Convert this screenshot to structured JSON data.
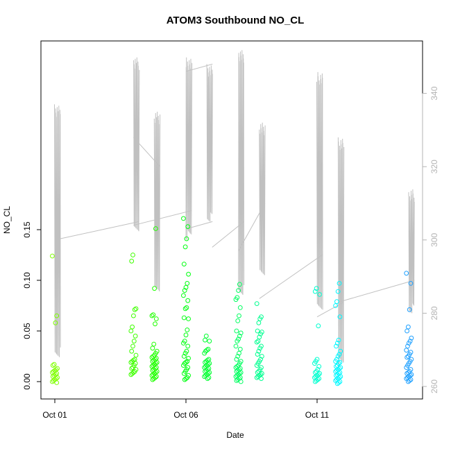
{
  "chart_data": {
    "type": "scatter",
    "title": "ATOM3 Southbound NO_CL",
    "xlabel": "Date",
    "ylabel": "NO_CL",
    "x_ticks": [
      "Oct 01",
      "Oct 06",
      "Oct 11"
    ],
    "xlim": [
      "2016-10-01",
      "2016-10-15"
    ],
    "ylim": [
      -0.007,
      0.161
    ],
    "y_ticks": [
      "0.00",
      "0.05",
      "0.10",
      "0.15"
    ],
    "y2lim": [
      259,
      349
    ],
    "y2_ticks": [
      "260",
      "280",
      "300",
      "320",
      "340"
    ],
    "grid": false,
    "marker": "open-circle",
    "color_scale": [
      "#7fff00",
      "#00ff00",
      "#00ff7f",
      "#00ffff",
      "#1e90ff"
    ],
    "secondary_series": {
      "color": "#c0c0c0",
      "type": "line",
      "segments": [
        {
          "x": "2016-10-01",
          "ymin": 268,
          "ymax": 337
        },
        {
          "x": "2016-10-04",
          "ymin": 302,
          "ymax": 350
        },
        {
          "x": "2016-10-04.8",
          "ymin": 285,
          "ymax": 335
        },
        {
          "x": "2016-10-06",
          "ymin": 300,
          "ymax": 350
        },
        {
          "x": "2016-10-06.8",
          "ymin": 305,
          "ymax": 348
        },
        {
          "x": "2016-10-08",
          "ymin": 285,
          "ymax": 352
        },
        {
          "x": "2016-10-08.8",
          "ymin": 290,
          "ymax": 332
        },
        {
          "x": "2016-10-11",
          "ymin": 280,
          "ymax": 346
        },
        {
          "x": "2016-10-11.8",
          "ymin": 265,
          "ymax": 328
        },
        {
          "x": "2016-10-14.5",
          "ymin": 280,
          "ymax": 314
        }
      ],
      "connectors": [
        {
          "x": [
            "2016-10-01",
            "2016-10-04"
          ],
          "y": [
            300,
            305
          ]
        },
        {
          "x": [
            "2016-10-04",
            "2016-10-04.8"
          ],
          "y": [
            328,
            320
          ]
        },
        {
          "x": [
            "2016-10-04",
            "2016-10-06"
          ],
          "y": [
            304,
            308
          ]
        },
        {
          "x": [
            "2016-10-06",
            "2016-10-06.8"
          ],
          "y": [
            346,
            348
          ]
        },
        {
          "x": [
            "2016-10-06",
            "2016-10-06.8"
          ],
          "y": [
            303,
            305
          ]
        },
        {
          "x": [
            "2016-10-07",
            "2016-10-08"
          ],
          "y": [
            298,
            305
          ]
        },
        {
          "x": [
            "2016-10-08",
            "2016-10-08.8"
          ],
          "y": [
            297,
            310
          ]
        },
        {
          "x": [
            "2016-10-08.8",
            "2016-10-11"
          ],
          "y": [
            284,
            296
          ]
        },
        {
          "x": [
            "2016-10-11",
            "2016-10-11.8"
          ],
          "y": [
            279,
            283
          ]
        },
        {
          "x": [
            "2016-10-11.8",
            "2016-10-14.5"
          ],
          "y": [
            283,
            289
          ]
        }
      ]
    },
    "clusters": [
      {
        "x": "2016-10-01",
        "color": "#7fff00",
        "points": [
          0.124,
          0.065,
          0.058,
          0.017,
          0.016,
          0.013,
          0.012,
          0.011,
          0.01,
          0.009,
          0.008,
          0.007,
          0.006,
          0.005,
          0.004,
          0.003,
          0.002,
          0.001,
          0.0,
          -0.001
        ]
      },
      {
        "x": "2016-10-04",
        "color": "#3fff00",
        "points": [
          0.125,
          0.119,
          0.072,
          0.071,
          0.065,
          0.054,
          0.05,
          0.045,
          0.04,
          0.035,
          0.03,
          0.026,
          0.022,
          0.021,
          0.02,
          0.019,
          0.018,
          0.016,
          0.014,
          0.013,
          0.012,
          0.01,
          0.009,
          0.008,
          0.007
        ]
      },
      {
        "x": "2016-10-04.8",
        "color": "#20ff00",
        "points": [
          0.151,
          0.092,
          0.066,
          0.065,
          0.062,
          0.057,
          0.037,
          0.033,
          0.03,
          0.028,
          0.026,
          0.025,
          0.024,
          0.023,
          0.022,
          0.021,
          0.02,
          0.019,
          0.018,
          0.017,
          0.016,
          0.015,
          0.014,
          0.013,
          0.012,
          0.011,
          0.01,
          0.009,
          0.008,
          0.007,
          0.006,
          0.005,
          0.004,
          0.003,
          0.002
        ]
      },
      {
        "x": "2016-10-06",
        "color": "#00ff10",
        "points": [
          0.161,
          0.153,
          0.141,
          0.133,
          0.116,
          0.106,
          0.097,
          0.093,
          0.09,
          0.085,
          0.08,
          0.073,
          0.072,
          0.063,
          0.062,
          0.051,
          0.046,
          0.04,
          0.038,
          0.035,
          0.03,
          0.028,
          0.025,
          0.023,
          0.02,
          0.019,
          0.018,
          0.016,
          0.014,
          0.012,
          0.01,
          0.008,
          0.006,
          0.004,
          0.003,
          0.002
        ]
      },
      {
        "x": "2016-10-06.8",
        "color": "#00ff30",
        "points": [
          0.045,
          0.041,
          0.04,
          0.032,
          0.031,
          0.03,
          0.028,
          0.022,
          0.021,
          0.02,
          0.019,
          0.018,
          0.017,
          0.016,
          0.015,
          0.014,
          0.013,
          0.012,
          0.011,
          0.01,
          0.009,
          0.008,
          0.007,
          0.006,
          0.005,
          0.004,
          0.003
        ]
      },
      {
        "x": "2016-10-08",
        "color": "#00ff60",
        "points": [
          0.096,
          0.09,
          0.083,
          0.081,
          0.073,
          0.065,
          0.06,
          0.05,
          0.048,
          0.045,
          0.042,
          0.04,
          0.035,
          0.032,
          0.028,
          0.025,
          0.022,
          0.02,
          0.018,
          0.016,
          0.015,
          0.014,
          0.013,
          0.012,
          0.011,
          0.01,
          0.009,
          0.008,
          0.007,
          0.006,
          0.005,
          0.004,
          0.003,
          0.002,
          0.001,
          0.0
        ]
      },
      {
        "x": "2016-10-08.8",
        "color": "#00ff90",
        "points": [
          0.077,
          0.064,
          0.062,
          0.058,
          0.05,
          0.049,
          0.047,
          0.044,
          0.04,
          0.039,
          0.035,
          0.033,
          0.03,
          0.027,
          0.025,
          0.022,
          0.02,
          0.018,
          0.016,
          0.014,
          0.012,
          0.01,
          0.009,
          0.008,
          0.007,
          0.006,
          0.005,
          0.004,
          0.003
        ]
      },
      {
        "x": "2016-10-11",
        "color": "#00ffd0",
        "points": [
          0.092,
          0.089,
          0.086,
          0.055,
          0.022,
          0.02,
          0.018,
          0.015,
          0.012,
          0.01,
          0.009,
          0.008,
          0.007,
          0.006,
          0.005,
          0.004,
          0.003,
          0.002,
          0.001,
          0.0
        ]
      },
      {
        "x": "2016-10-11.8",
        "color": "#00f8ff",
        "points": [
          0.097,
          0.089,
          0.079,
          0.075,
          0.064,
          0.041,
          0.038,
          0.035,
          0.03,
          0.027,
          0.025,
          0.022,
          0.02,
          0.019,
          0.018,
          0.016,
          0.015,
          0.014,
          0.013,
          0.012,
          0.011,
          0.01,
          0.009,
          0.008,
          0.007,
          0.006,
          0.005,
          0.004,
          0.003,
          0.002,
          0.001,
          0.0,
          -0.001,
          -0.002
        ]
      },
      {
        "x": "2016-10-14.5",
        "color": "#1ea0ff",
        "points": [
          0.107,
          0.097,
          0.071,
          0.054,
          0.05,
          0.043,
          0.04,
          0.038,
          0.035,
          0.031,
          0.029,
          0.027,
          0.025,
          0.024,
          0.022,
          0.02,
          0.018,
          0.016,
          0.014,
          0.012,
          0.01,
          0.009,
          0.008,
          0.007,
          0.006,
          0.005,
          0.004,
          0.003,
          0.002,
          0.001,
          0.0
        ]
      }
    ]
  }
}
